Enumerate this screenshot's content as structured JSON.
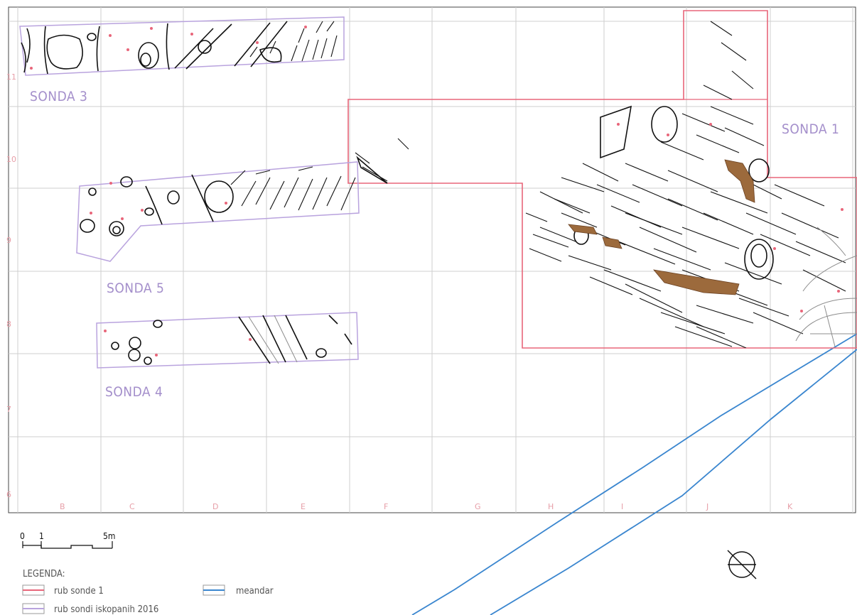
{
  "sondas": [
    {
      "id": "sonda3",
      "label": "SONDA 3"
    },
    {
      "id": "sonda1",
      "label": "SONDA 1"
    },
    {
      "id": "sonda5",
      "label": "SONDA 5"
    },
    {
      "id": "sonda4",
      "label": "SONDA 4"
    }
  ],
  "grid": {
    "columns": [
      "B",
      "C",
      "D",
      "E",
      "F",
      "G",
      "H",
      "I",
      "J",
      "K"
    ],
    "rows": [
      "11",
      "10",
      "9",
      "8",
      "7",
      "6"
    ]
  },
  "scale": {
    "ticks": [
      "0",
      "1",
      "5m"
    ]
  },
  "legend": {
    "title": "LEGENDA:",
    "items": [
      {
        "label": "rub sonde 1",
        "color": "#e8667a"
      },
      {
        "label": "meandar",
        "color": "#3a86cf"
      },
      {
        "label": "rub sondi iskopanih 2016",
        "color": "#b9a3de"
      }
    ]
  },
  "colors": {
    "grid": "#cfcfcf",
    "sonda1": "#e8667a",
    "sondas": "#b9a3de",
    "meander": "#3a86cf",
    "feature": "#111111",
    "fill_brown": "#8a5a2b"
  },
  "north_symbol": "north-arrow-icon"
}
